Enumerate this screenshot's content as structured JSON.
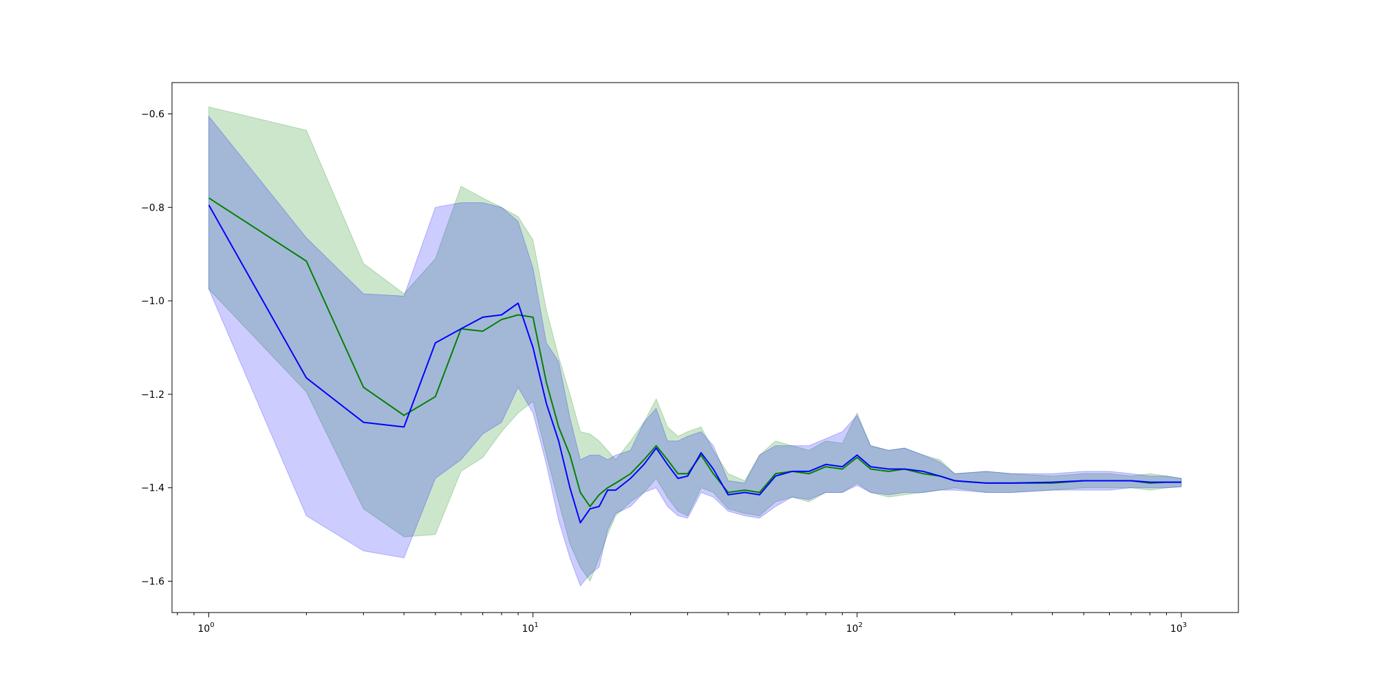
{
  "chart_data": {
    "type": "line",
    "title": "",
    "xlabel": "",
    "ylabel": "",
    "xscale": "log",
    "xlim": [
      0.77,
      1500
    ],
    "ylim": [
      -1.667,
      -0.533
    ],
    "grid": false,
    "legend": "none",
    "x_tick_labels": [
      {
        "base": "10",
        "exp": "0",
        "value": 1
      },
      {
        "base": "10",
        "exp": "1",
        "value": 10
      },
      {
        "base": "10",
        "exp": "2",
        "value": 100
      },
      {
        "base": "10",
        "exp": "3",
        "value": 1000
      }
    ],
    "y_tick_labels": [
      {
        "label": "−0.6",
        "value": -0.6
      },
      {
        "label": "−0.8",
        "value": -0.8
      },
      {
        "label": "−1.0",
        "value": -1.0
      },
      {
        "label": "−1.2",
        "value": -1.2
      },
      {
        "label": "−1.4",
        "value": -1.4
      },
      {
        "label": "−1.6",
        "value": -1.6
      }
    ],
    "series": [
      {
        "color": "#008000",
        "band_color": "#008000",
        "band_opacity": 0.2,
        "x": [
          1,
          2,
          3,
          4,
          5,
          6,
          7,
          8,
          9,
          10,
          11,
          12,
          13,
          14,
          15,
          16,
          17,
          18,
          20,
          22,
          24,
          26,
          28,
          30,
          33,
          36,
          40,
          45,
          50,
          56,
          63,
          71,
          80,
          90,
          100,
          110,
          125,
          140,
          160,
          180,
          200,
          250,
          300,
          400,
          500,
          600,
          700,
          800,
          900,
          1000
        ],
        "mean": [
          -0.78,
          -0.915,
          -1.185,
          -1.245,
          -1.205,
          -1.06,
          -1.065,
          -1.04,
          -1.03,
          -1.035,
          -1.175,
          -1.27,
          -1.33,
          -1.41,
          -1.44,
          -1.415,
          -1.4,
          -1.39,
          -1.37,
          -1.34,
          -1.31,
          -1.34,
          -1.37,
          -1.37,
          -1.33,
          -1.37,
          -1.41,
          -1.405,
          -1.41,
          -1.37,
          -1.365,
          -1.37,
          -1.355,
          -1.36,
          -1.335,
          -1.36,
          -1.365,
          -1.36,
          -1.37,
          -1.375,
          -1.385,
          -1.39,
          -1.39,
          -1.39,
          -1.385,
          -1.385,
          -1.385,
          -1.39,
          -1.388,
          -1.388
        ],
        "upper": [
          -0.585,
          -0.635,
          -0.92,
          -0.985,
          -0.91,
          -0.755,
          -0.78,
          -0.8,
          -0.82,
          -0.87,
          -1.02,
          -1.12,
          -1.2,
          -1.28,
          -1.285,
          -1.3,
          -1.32,
          -1.34,
          -1.3,
          -1.26,
          -1.21,
          -1.27,
          -1.29,
          -1.28,
          -1.27,
          -1.32,
          -1.37,
          -1.385,
          -1.33,
          -1.3,
          -1.31,
          -1.32,
          -1.3,
          -1.305,
          -1.24,
          -1.31,
          -1.32,
          -1.315,
          -1.33,
          -1.34,
          -1.37,
          -1.365,
          -1.37,
          -1.375,
          -1.37,
          -1.37,
          -1.375,
          -1.37,
          -1.375,
          -1.38
        ],
        "lower": [
          -0.975,
          -1.195,
          -1.445,
          -1.505,
          -1.5,
          -1.365,
          -1.335,
          -1.28,
          -1.24,
          -1.215,
          -1.33,
          -1.43,
          -1.52,
          -1.57,
          -1.6,
          -1.55,
          -1.5,
          -1.46,
          -1.43,
          -1.41,
          -1.38,
          -1.42,
          -1.45,
          -1.46,
          -1.4,
          -1.41,
          -1.445,
          -1.455,
          -1.46,
          -1.43,
          -1.42,
          -1.43,
          -1.41,
          -1.41,
          -1.39,
          -1.41,
          -1.42,
          -1.415,
          -1.41,
          -1.405,
          -1.4,
          -1.41,
          -1.41,
          -1.405,
          -1.4,
          -1.4,
          -1.4,
          -1.405,
          -1.4,
          -1.398
        ]
      },
      {
        "color": "#0000ff",
        "band_color": "#0000ff",
        "band_opacity": 0.2,
        "x": [
          1,
          2,
          3,
          4,
          5,
          6,
          7,
          8,
          9,
          10,
          11,
          12,
          13,
          14,
          15,
          16,
          17,
          18,
          20,
          22,
          24,
          26,
          28,
          30,
          33,
          36,
          40,
          45,
          50,
          56,
          63,
          71,
          80,
          90,
          100,
          110,
          125,
          140,
          160,
          180,
          200,
          250,
          300,
          400,
          500,
          600,
          700,
          800,
          900,
          1000
        ],
        "mean": [
          -0.795,
          -1.165,
          -1.26,
          -1.27,
          -1.09,
          -1.06,
          -1.035,
          -1.03,
          -1.005,
          -1.1,
          -1.22,
          -1.3,
          -1.4,
          -1.475,
          -1.445,
          -1.44,
          -1.405,
          -1.405,
          -1.38,
          -1.35,
          -1.315,
          -1.35,
          -1.38,
          -1.375,
          -1.325,
          -1.36,
          -1.415,
          -1.41,
          -1.415,
          -1.375,
          -1.365,
          -1.365,
          -1.35,
          -1.355,
          -1.33,
          -1.355,
          -1.36,
          -1.36,
          -1.365,
          -1.375,
          -1.385,
          -1.39,
          -1.39,
          -1.388,
          -1.385,
          -1.385,
          -1.385,
          -1.388,
          -1.388,
          -1.388
        ],
        "upper": [
          -0.605,
          -0.865,
          -0.985,
          -0.99,
          -0.8,
          -0.79,
          -0.79,
          -0.8,
          -0.83,
          -0.93,
          -1.09,
          -1.13,
          -1.25,
          -1.34,
          -1.33,
          -1.33,
          -1.34,
          -1.33,
          -1.32,
          -1.26,
          -1.23,
          -1.3,
          -1.3,
          -1.29,
          -1.28,
          -1.31,
          -1.385,
          -1.39,
          -1.33,
          -1.31,
          -1.31,
          -1.31,
          -1.295,
          -1.28,
          -1.245,
          -1.31,
          -1.32,
          -1.315,
          -1.33,
          -1.345,
          -1.37,
          -1.365,
          -1.37,
          -1.37,
          -1.365,
          -1.365,
          -1.37,
          -1.375,
          -1.375,
          -1.38
        ],
        "lower": [
          -0.975,
          -1.46,
          -1.535,
          -1.55,
          -1.38,
          -1.34,
          -1.285,
          -1.26,
          -1.185,
          -1.24,
          -1.35,
          -1.47,
          -1.55,
          -1.61,
          -1.585,
          -1.57,
          -1.49,
          -1.455,
          -1.44,
          -1.41,
          -1.4,
          -1.44,
          -1.46,
          -1.465,
          -1.41,
          -1.42,
          -1.45,
          -1.46,
          -1.465,
          -1.44,
          -1.42,
          -1.425,
          -1.41,
          -1.41,
          -1.395,
          -1.41,
          -1.415,
          -1.41,
          -1.41,
          -1.405,
          -1.405,
          -1.41,
          -1.41,
          -1.405,
          -1.405,
          -1.405,
          -1.4,
          -1.4,
          -1.4,
          -1.398
        ]
      }
    ]
  }
}
